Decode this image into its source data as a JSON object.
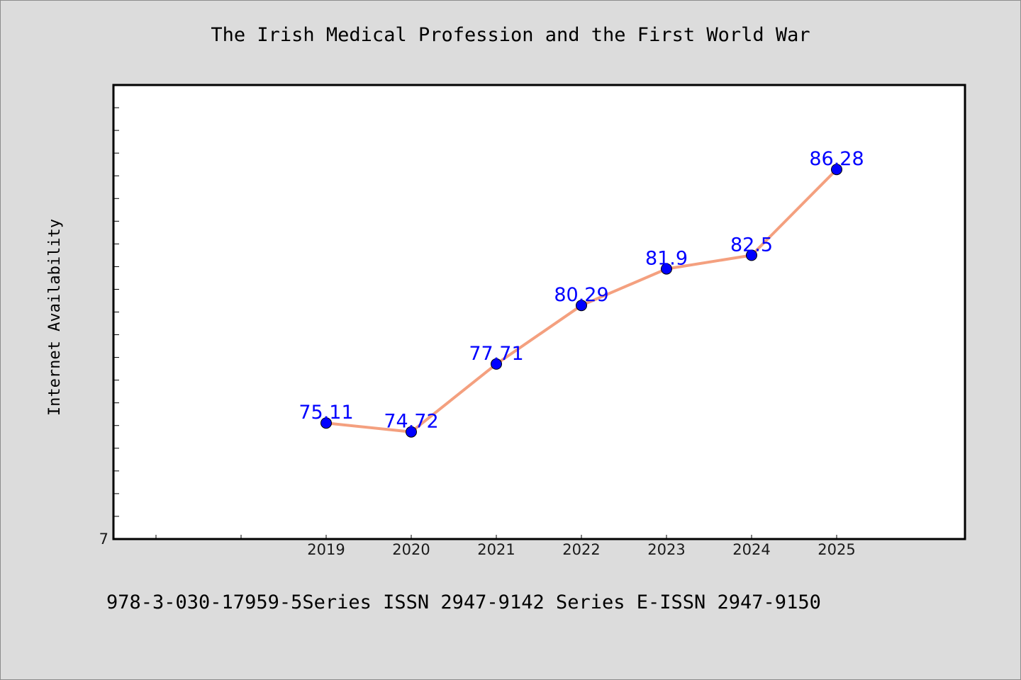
{
  "page": {
    "title": "The Irish Medical Profession and the First World War",
    "footer": "978-3-030-17959-5Series ISSN 2947-9142 Series E-ISSN 2947-9150"
  },
  "chart_data": {
    "type": "line",
    "title": "The Irish Medical Profession and the First World War",
    "xlabel": "",
    "ylabel": "Internet Availability",
    "x_ticks": [
      "",
      "",
      "",
      "2019",
      "2020",
      "2021",
      "2022",
      "2023",
      "2024",
      "2025"
    ],
    "y_tick_labels": [
      "7"
    ],
    "ylim": [
      70,
      90
    ],
    "grid": false,
    "series": [
      {
        "x": [
          "2019",
          "2020",
          "2021",
          "2022",
          "2023",
          "2024",
          "2025"
        ],
        "values": [
          75.11,
          74.72,
          77.71,
          80.29,
          81.9,
          82.5,
          86.28
        ],
        "labels": [
          "75.11",
          "74.72",
          "77.71",
          "80.29",
          "81.9",
          "82.5",
          "86.28"
        ],
        "line_color": "#f4a07f",
        "marker_color": "#0000ff"
      }
    ]
  }
}
